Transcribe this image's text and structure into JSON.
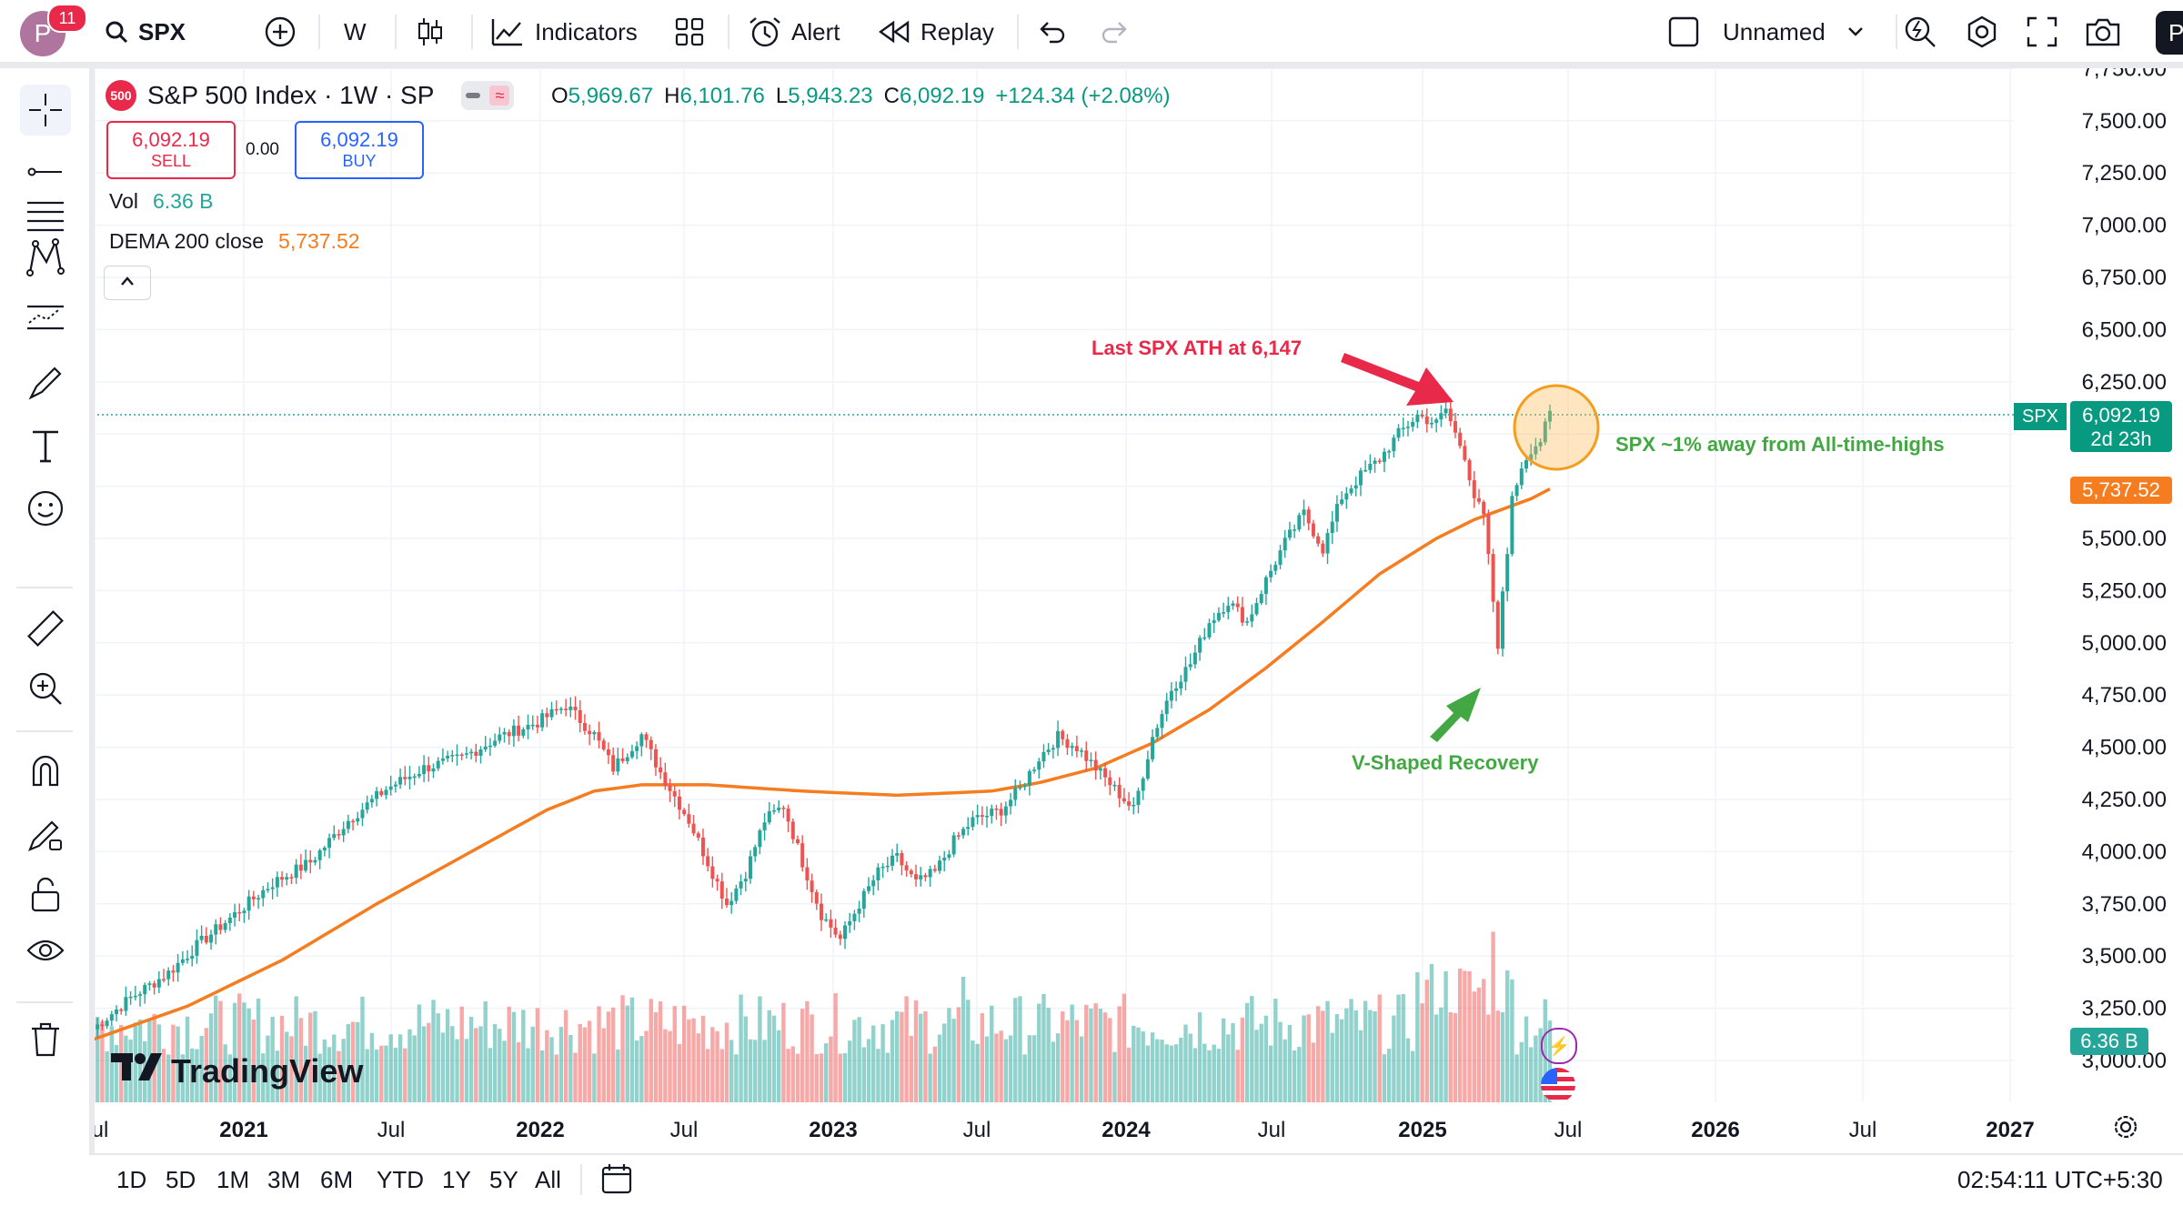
{
  "header": {
    "avatar_letter": "P",
    "notification_count": "11",
    "symbol": "SPX",
    "interval": "W",
    "indicators_label": "Indicators",
    "alert_label": "Alert",
    "replay_label": "Replay",
    "layout_name": "Unnamed",
    "publish_label": "Pu"
  },
  "legend": {
    "symbol_badge": "500",
    "title": "S&P 500 Index · 1W · SP",
    "o_label": "O",
    "o_value": "5,969.67",
    "h_label": "H",
    "h_value": "6,101.76",
    "l_label": "L",
    "l_value": "5,943.23",
    "c_label": "C",
    "c_value": "6,092.19",
    "change": "+124.34 (+2.08%)",
    "sell_price": "6,092.19",
    "sell_label": "SELL",
    "spread": "0.00",
    "buy_price": "6,092.19",
    "buy_label": "BUY",
    "vol_label": "Vol",
    "vol_value": "6.36 B",
    "dema_label": "DEMA 200 close",
    "dema_value": "5,737.52"
  },
  "annotations": {
    "ath_text": "Last SPX ATH at 6,147",
    "away_text": "SPX ~1% away from All-time-highs",
    "v_text": "V-Shaped Recovery"
  },
  "price_axis": {
    "ticks": [
      "7,750.00",
      "7,500.00",
      "7,250.00",
      "7,000.00",
      "6,750.00",
      "6,500.00",
      "6,250.00",
      "5,500.00",
      "5,250.00",
      "5,000.00",
      "4,750.00",
      "4,500.00",
      "4,250.00",
      "4,000.00",
      "3,750.00",
      "3,500.00",
      "3,250.00",
      "3,000.00"
    ],
    "symbol_tag": "SPX",
    "last_price": "6,092.19",
    "countdown": "2d 23h",
    "dema_tag": "5,737.52",
    "vol_tag": "6.36 B"
  },
  "time_axis": {
    "labels": [
      "Jul",
      "2021",
      "Jul",
      "2022",
      "Jul",
      "2023",
      "Jul",
      "2024",
      "Jul",
      "2025",
      "Jul",
      "2026",
      "Jul",
      "2027"
    ]
  },
  "bottom": {
    "ranges": [
      "1D",
      "5D",
      "1M",
      "3M",
      "6M",
      "YTD",
      "1Y",
      "5Y",
      "All"
    ],
    "clock": "02:54:11 UTC+5:30"
  },
  "watermark": "TradingView",
  "colors": {
    "up": "#26a69a",
    "down": "#ef5350",
    "dema": "#f57c1f",
    "ath_red": "#e8294a",
    "recovery_green": "#43a843",
    "accent_blue": "#2962ff"
  },
  "chart_data": {
    "type": "candlestick",
    "interval": "1W",
    "x_range": [
      "Jul 2020",
      "Jul 2025"
    ],
    "ylim": [
      3000,
      7750
    ],
    "last_close": 6092.19,
    "all_time_high": 6147,
    "dema200_last": 5737.52,
    "price_path": [
      [
        0,
        3150
      ],
      [
        8,
        3300
      ],
      [
        16,
        3420
      ],
      [
        22,
        3550
      ],
      [
        30,
        3700
      ],
      [
        38,
        3850
      ],
      [
        46,
        3950
      ],
      [
        54,
        4150
      ],
      [
        62,
        4300
      ],
      [
        70,
        4400
      ],
      [
        78,
        4450
      ],
      [
        86,
        4550
      ],
      [
        94,
        4620
      ],
      [
        100,
        4700
      ],
      [
        106,
        4560
      ],
      [
        110,
        4400
      ],
      [
        116,
        4560
      ],
      [
        120,
        4380
      ],
      [
        126,
        4150
      ],
      [
        130,
        3950
      ],
      [
        134,
        3750
      ],
      [
        138,
        3900
      ],
      [
        142,
        4150
      ],
      [
        146,
        4220
      ],
      [
        150,
        3950
      ],
      [
        154,
        3700
      ],
      [
        158,
        3580
      ],
      [
        162,
        3750
      ],
      [
        166,
        3900
      ],
      [
        170,
        3970
      ],
      [
        174,
        3850
      ],
      [
        178,
        3900
      ],
      [
        182,
        4050
      ],
      [
        186,
        4150
      ],
      [
        192,
        4200
      ],
      [
        196,
        4300
      ],
      [
        200,
        4450
      ],
      [
        204,
        4550
      ],
      [
        208,
        4500
      ],
      [
        212,
        4400
      ],
      [
        216,
        4300
      ],
      [
        220,
        4200
      ],
      [
        224,
        4550
      ],
      [
        228,
        4780
      ],
      [
        232,
        4900
      ],
      [
        236,
        5100
      ],
      [
        240,
        5200
      ],
      [
        244,
        5100
      ],
      [
        248,
        5300
      ],
      [
        252,
        5480
      ],
      [
        256,
        5620
      ],
      [
        260,
        5450
      ],
      [
        264,
        5700
      ],
      [
        268,
        5800
      ],
      [
        272,
        5880
      ],
      [
        276,
        6000
      ],
      [
        280,
        6090
      ],
      [
        284,
        6050
      ],
      [
        286,
        6120
      ],
      [
        288,
        6000
      ],
      [
        290,
        5900
      ],
      [
        292,
        5700
      ],
      [
        294,
        5600
      ],
      [
        296,
        5200
      ],
      [
        297,
        4950
      ],
      [
        298,
        5250
      ],
      [
        299,
        5450
      ],
      [
        300,
        5680
      ],
      [
        302,
        5850
      ],
      [
        304,
        5930
      ],
      [
        306,
        5970
      ],
      [
        308,
        6092
      ]
    ],
    "dema_path": [
      [
        0,
        3100
      ],
      [
        20,
        3260
      ],
      [
        40,
        3480
      ],
      [
        60,
        3750
      ],
      [
        80,
        4000
      ],
      [
        96,
        4200
      ],
      [
        106,
        4290
      ],
      [
        116,
        4320
      ],
      [
        130,
        4320
      ],
      [
        150,
        4290
      ],
      [
        170,
        4270
      ],
      [
        190,
        4290
      ],
      [
        200,
        4330
      ],
      [
        212,
        4400
      ],
      [
        224,
        4520
      ],
      [
        236,
        4680
      ],
      [
        248,
        4880
      ],
      [
        260,
        5100
      ],
      [
        272,
        5330
      ],
      [
        284,
        5500
      ],
      [
        292,
        5590
      ],
      [
        298,
        5640
      ],
      [
        304,
        5690
      ],
      [
        308,
        5737
      ]
    ],
    "volume_relative": "normalized 0-1 per bar, peak near Apr 2025"
  }
}
